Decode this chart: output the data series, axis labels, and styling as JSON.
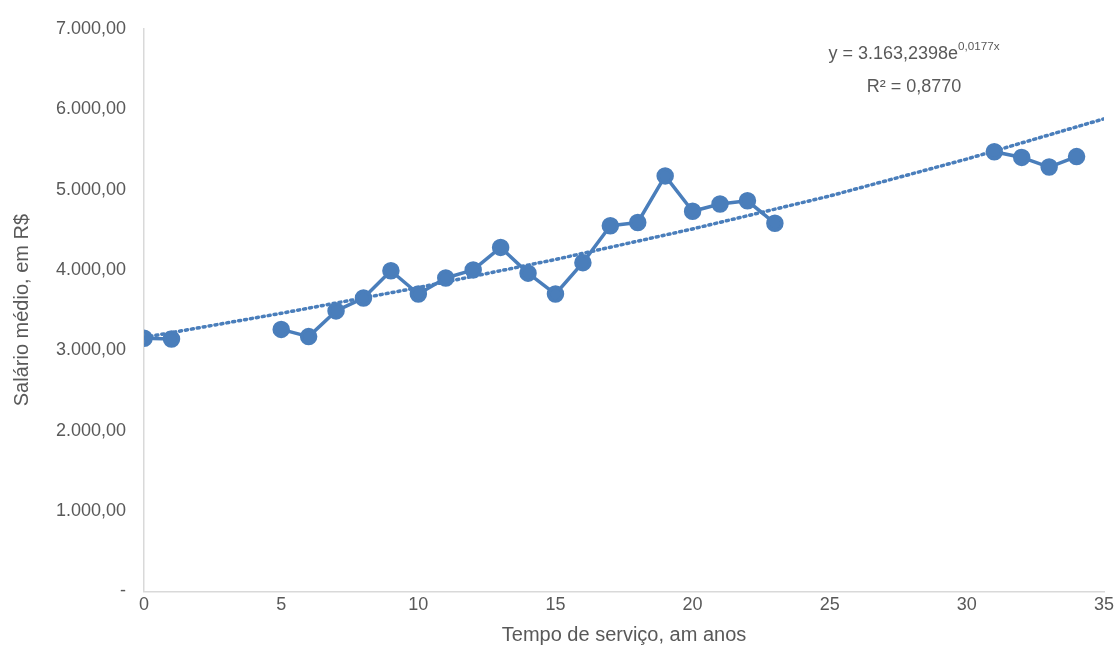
{
  "chart_data": {
    "type": "line",
    "xlabel": "Tempo de serviço, am anos",
    "ylabel": "Salário médio, em R$",
    "x": [
      0,
      1,
      2,
      3,
      4,
      5,
      6,
      7,
      8,
      9,
      10,
      11,
      12,
      13,
      14,
      15,
      16,
      17,
      18,
      19,
      20,
      21,
      22,
      23,
      24,
      25,
      26,
      27,
      28,
      29,
      30,
      31,
      32,
      33,
      34
    ],
    "series": [
      {
        "color": "#4a7ebb",
        "values": [
          3150,
          3140,
          null,
          null,
          null,
          3260,
          3170,
          3490,
          3650,
          3990,
          3700,
          3900,
          4000,
          4280,
          3960,
          3700,
          4090,
          4550,
          4590,
          5170,
          4730,
          4820,
          4860,
          4580,
          null,
          null,
          null,
          null,
          null,
          null,
          null,
          5470,
          5400,
          5280,
          5410
        ]
      },
      {
        "type": "line",
        "line_style": "dotted",
        "marker": "none",
        "color": "#4a7ebb",
        "x": [
          0,
          5,
          10,
          15,
          20,
          25,
          30,
          35
        ],
        "values": [
          3160,
          3460,
          3780,
          4130,
          4510,
          4920,
          5380,
          5880
        ]
      }
    ],
    "marker": "circle",
    "line_style": "solid",
    "xlim": [
      0,
      35
    ],
    "xticks": [
      0,
      5,
      10,
      15,
      20,
      25,
      30,
      35
    ],
    "ylim": [
      0,
      7000
    ],
    "yticks": [
      {
        "value": 0,
        "label": "-"
      },
      {
        "value": 1000,
        "label": "1.000,00"
      },
      {
        "value": 2000,
        "label": "2.000,00"
      },
      {
        "value": 3000,
        "label": "3.000,00"
      },
      {
        "value": 4000,
        "label": "4.000,00"
      },
      {
        "value": 5000,
        "label": "5.000,00"
      },
      {
        "value": 6000,
        "label": "6.000,00"
      },
      {
        "value": 7000,
        "label": "7.000,00"
      }
    ],
    "grid": false,
    "legend": false,
    "annotations": [
      "y = 3.163,2398e$^{0,0177x}$",
      "R² = 0,8770"
    ]
  }
}
